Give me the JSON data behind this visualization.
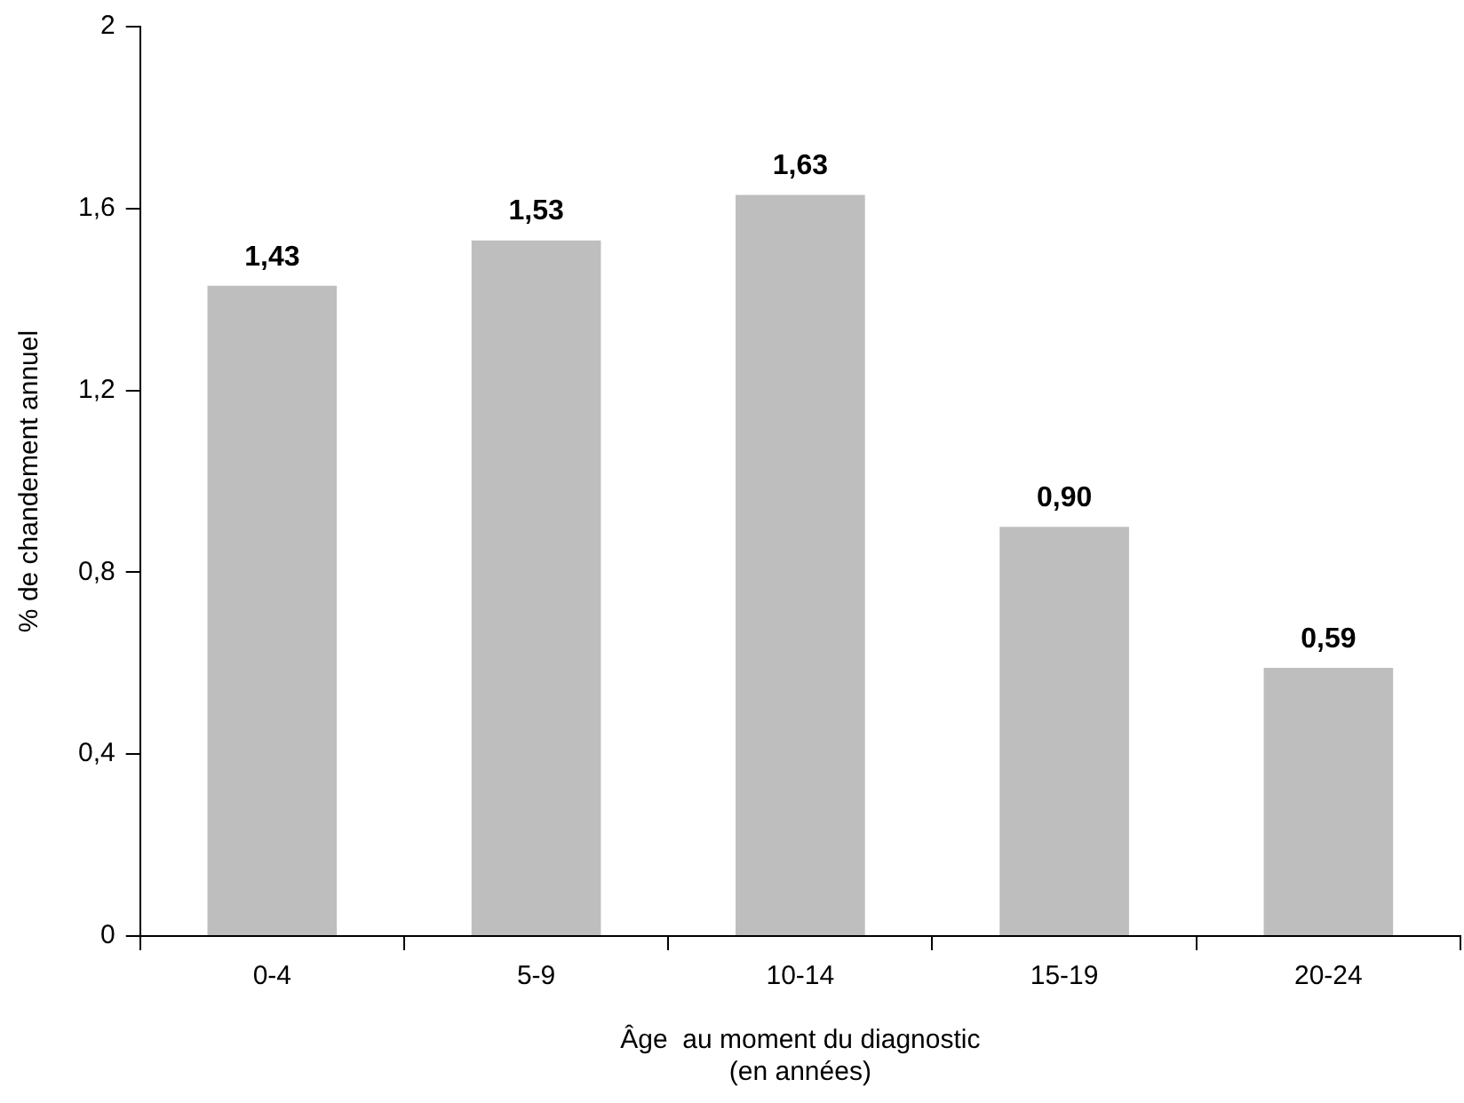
{
  "chart_data": {
    "type": "bar",
    "categories": [
      "0-4",
      "5-9",
      "10-14",
      "15-19",
      "20-24"
    ],
    "values": [
      1.43,
      1.53,
      1.63,
      0.9,
      0.59
    ],
    "color": "#bebebe",
    "value_labels": [
      "1,43",
      "1,53",
      "1,63",
      "0,90",
      "0,59"
    ],
    "ylim": [
      0,
      2
    ],
    "yticks": [
      0,
      {
        "value": 0.4,
        "label": "0,4"
      },
      {
        "value": 0.8,
        "label": "0,8"
      },
      {
        "value": 1.2,
        "label": "1,2"
      },
      {
        "value": 1.6,
        "label": "1,6"
      },
      2
    ],
    "ylabel": "% de chandement annuel",
    "xlabel": "Âge  au moment du diagnostic\n(en années)",
    "grid": false,
    "legend": false
  }
}
